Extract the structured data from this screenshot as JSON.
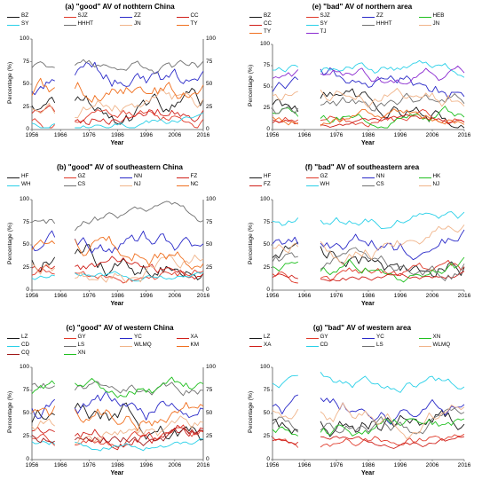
{
  "chart_data": [
    {
      "id": "a",
      "type": "line",
      "title": "(a) \"good\" AV of nothtern China",
      "xlabel": "Year",
      "ylabel": "Percentage (%)",
      "xlim": [
        1956,
        2016
      ],
      "ylim": [
        0,
        100
      ],
      "xticks": [
        1956,
        1966,
        1976,
        1986,
        1996,
        2006,
        2016
      ],
      "yticks": [
        0,
        25,
        50,
        75,
        100
      ],
      "right_axis": true,
      "gaps": [
        [
          1964,
          1971
        ]
      ],
      "series": [
        {
          "name": "BZ",
          "color": "#1a1a1a"
        },
        {
          "name": "SJZ",
          "color": "#e03a2a"
        },
        {
          "name": "ZZ",
          "color": "#2a2ac8"
        },
        {
          "name": "CC",
          "color": "#d0201a"
        },
        {
          "name": "SY",
          "color": "#2ad0e8"
        },
        {
          "name": "HHHT",
          "color": "#707070"
        },
        {
          "name": "JN",
          "color": "#f0b48a"
        },
        {
          "name": "TY",
          "color": "#f07020"
        }
      ]
    },
    {
      "id": "b",
      "type": "line",
      "title": "(b) \"good\" AV of southeastern China",
      "xlabel": "Year",
      "ylabel": "Percentage (%)",
      "xlim": [
        1956,
        2016
      ],
      "ylim": [
        0,
        100
      ],
      "xticks": [
        1956,
        1966,
        1976,
        1986,
        1996,
        2006,
        2016
      ],
      "yticks": [
        0,
        25,
        50,
        75,
        100
      ],
      "right_axis": true,
      "gaps": [
        [
          1964,
          1971
        ]
      ],
      "series": [
        {
          "name": "HF",
          "color": "#1a1a1a"
        },
        {
          "name": "GZ",
          "color": "#e03a2a"
        },
        {
          "name": "NN",
          "color": "#2a2ac8"
        },
        {
          "name": "FZ",
          "color": "#d0201a"
        },
        {
          "name": "WH",
          "color": "#2ad0e8"
        },
        {
          "name": "CS",
          "color": "#707070"
        },
        {
          "name": "NJ",
          "color": "#f0b48a"
        },
        {
          "name": "NC",
          "color": "#f07020"
        }
      ]
    },
    {
      "id": "c",
      "type": "line",
      "title": "(c) \"good\" AV of western China",
      "xlabel": "Year",
      "ylabel": "Percentage (%)",
      "xlim": [
        1956,
        2016
      ],
      "ylim": [
        0,
        100
      ],
      "xticks": [
        1956,
        1966,
        1976,
        1986,
        1996,
        2006,
        2016
      ],
      "yticks": [
        0,
        25,
        50,
        75,
        100
      ],
      "right_axis": true,
      "gaps": [
        [
          1964,
          1971
        ]
      ],
      "series": [
        {
          "name": "LZ",
          "color": "#1a1a1a"
        },
        {
          "name": "GY",
          "color": "#e03a2a"
        },
        {
          "name": "YC",
          "color": "#2a2ac8"
        },
        {
          "name": "XA",
          "color": "#d0201a"
        },
        {
          "name": "CD",
          "color": "#2ad0e8"
        },
        {
          "name": "LS",
          "color": "#707070"
        },
        {
          "name": "WLMQ",
          "color": "#f0b48a"
        },
        {
          "name": "KM",
          "color": "#f07020"
        },
        {
          "name": "CQ",
          "color": "#a01818"
        },
        {
          "name": "XN",
          "color": "#20c020"
        }
      ]
    },
    {
      "id": "e",
      "type": "line",
      "title": "(e) \"bad\" AV of northern area",
      "xlabel": "Year",
      "ylabel": "Percentage (%)",
      "xlim": [
        1956,
        2016
      ],
      "ylim": [
        0,
        100
      ],
      "xticks": [
        1956,
        1966,
        1976,
        1986,
        1996,
        2006,
        2016
      ],
      "yticks": [
        0,
        25,
        50,
        75,
        100
      ],
      "right_axis": false,
      "gaps": [
        [
          1964,
          1971
        ]
      ],
      "series": [
        {
          "name": "BZ",
          "color": "#1a1a1a"
        },
        {
          "name": "SJZ",
          "color": "#e03a2a"
        },
        {
          "name": "ZZ",
          "color": "#2a2ac8"
        },
        {
          "name": "HEB",
          "color": "#20c020"
        },
        {
          "name": "CC",
          "color": "#d0201a"
        },
        {
          "name": "SY",
          "color": "#2ad0e8"
        },
        {
          "name": "HHHT",
          "color": "#707070"
        },
        {
          "name": "JN",
          "color": "#f0b48a"
        },
        {
          "name": "TY",
          "color": "#f07020"
        },
        {
          "name": "TJ",
          "color": "#8a2ad0"
        }
      ]
    },
    {
      "id": "f",
      "type": "line",
      "title": "(f) \"bad\" AV of southeastern area",
      "xlabel": "Year",
      "ylabel": "Percentage (%)",
      "xlim": [
        1956,
        2016
      ],
      "ylim": [
        0,
        100
      ],
      "xticks": [
        1956,
        1966,
        1976,
        1986,
        1996,
        2006,
        2016
      ],
      "yticks": [
        0,
        25,
        50,
        75,
        100
      ],
      "right_axis": false,
      "gaps": [
        [
          1964,
          1971
        ]
      ],
      "series": [
        {
          "name": "HF",
          "color": "#1a1a1a"
        },
        {
          "name": "GZ",
          "color": "#e03a2a"
        },
        {
          "name": "NN",
          "color": "#2a2ac8"
        },
        {
          "name": "HK",
          "color": "#20c020"
        },
        {
          "name": "FZ",
          "color": "#d0201a"
        },
        {
          "name": "WH",
          "color": "#2ad0e8"
        },
        {
          "name": "CS",
          "color": "#707070"
        },
        {
          "name": "NJ",
          "color": "#f0b48a"
        }
      ]
    },
    {
      "id": "g",
      "type": "line",
      "title": "(g) \"bad\" AV of western area",
      "xlabel": "Year",
      "ylabel": "Percentage (%)",
      "xlim": [
        1956,
        2016
      ],
      "ylim": [
        0,
        100
      ],
      "xticks": [
        1956,
        1966,
        1976,
        1986,
        1996,
        2006,
        2016
      ],
      "yticks": [
        0,
        25,
        50,
        75,
        100
      ],
      "right_axis": false,
      "gaps": [
        [
          1964,
          1971
        ]
      ],
      "series": [
        {
          "name": "LZ",
          "color": "#1a1a1a"
        },
        {
          "name": "GY",
          "color": "#e03a2a"
        },
        {
          "name": "YC",
          "color": "#2a2ac8"
        },
        {
          "name": "XN",
          "color": "#20c020"
        },
        {
          "name": "XA",
          "color": "#d0201a"
        },
        {
          "name": "CD",
          "color": "#2ad0e8"
        },
        {
          "name": "LS",
          "color": "#707070"
        },
        {
          "name": "WLMQ",
          "color": "#f0b48a"
        }
      ]
    }
  ]
}
